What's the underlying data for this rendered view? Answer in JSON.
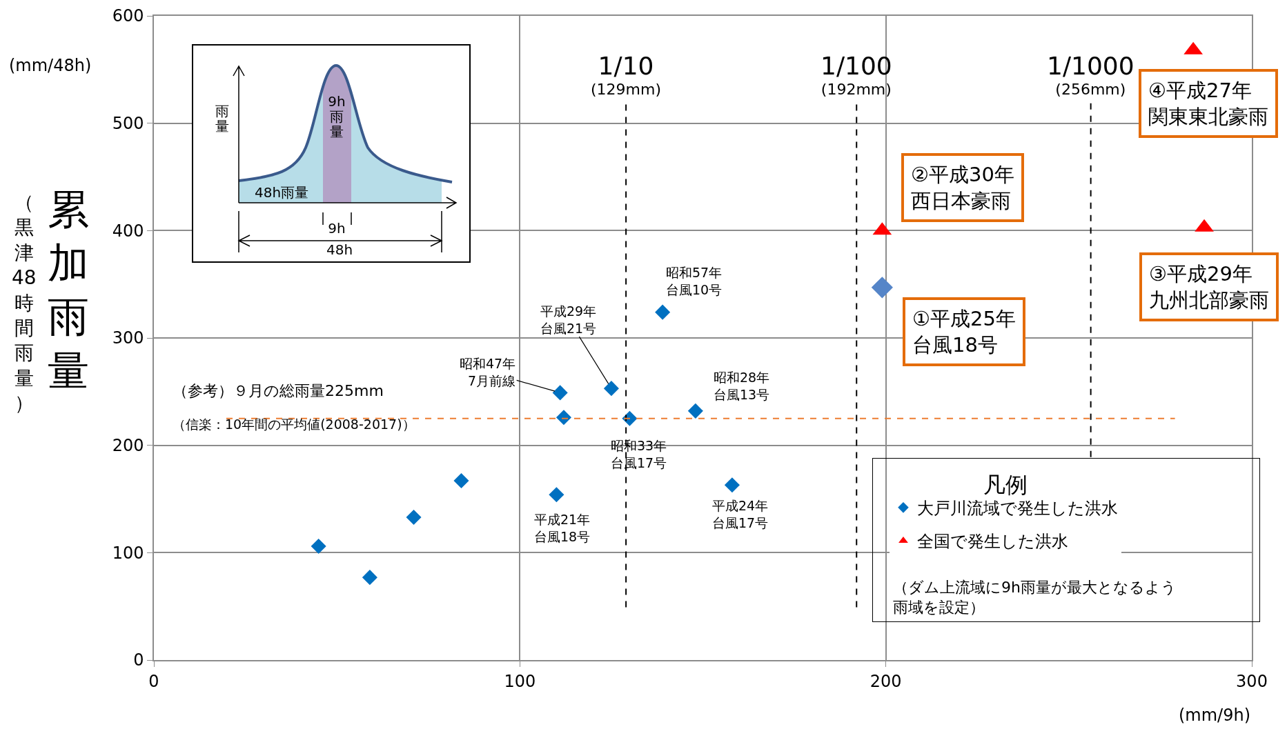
{
  "chart_data": {
    "type": "scatter",
    "ylabel": "累加雨量",
    "legend_title": "凡例",
    "xlim": [
      0,
      300
    ],
    "ylim": [
      0,
      600
    ],
    "xticks": [
      0,
      100,
      200,
      300
    ],
    "yticks": [
      0,
      100,
      200,
      300,
      400,
      500,
      600
    ],
    "grid": true,
    "legend": "bottom right",
    "marker": "diamond",
    "series": [
      {
        "name": "大戸川流域で発生した洪水",
        "color": "#0070c0",
        "x": [
          45,
          59,
          71,
          84,
          110,
          111,
          112,
          125,
          130,
          139,
          148,
          158
        ],
        "values": [
          106,
          77,
          133,
          167,
          154,
          249,
          226,
          253,
          225,
          324,
          232,
          163
        ]
      },
      {
        "name": "全国で発生した洪水",
        "color": "#ff0000",
        "marker": "triangle",
        "x": [
          199,
          284,
          287
        ],
        "values": [
          400,
          568,
          403
        ]
      },
      {
        "color": "#5585c8",
        "x": [
          199
        ],
        "values": [
          347
        ]
      }
    ],
    "ref_lines": [
      {
        "axis": "x",
        "value": 129,
        "label": "1/10\n(129mm)",
        "color": "#000000",
        "line_style": "dashed"
      },
      {
        "axis": "x",
        "value": 192,
        "label": "1/100\n(192mm)",
        "color": "#000000",
        "line_style": "dashed"
      },
      {
        "axis": "x",
        "value": 256,
        "label": "1/1000\n(256mm)",
        "color": "#000000",
        "line_style": "dashed"
      },
      {
        "axis": "y",
        "value": 225,
        "label": "（参考）９月の総雨量225mm",
        "color": "#ed7d31",
        "line_style": "dashed"
      }
    ],
    "annotations": [
      "雨量",
      "9h雨量",
      "48h雨量",
      "9h",
      "48h",
      "(mm/48h)",
      "(mm/9h)",
      "（ダム上流域に9h雨量が最大となるよう雨域を設定）",
      "（黒津48時間雨量）",
      "（信楽：10年間の平均値(2008-2017)）",
      {
        "text": "昭和57年台風10号",
        "x": 139,
        "y": 324
      },
      {
        "text": "平成29年台風21号",
        "x": 125,
        "y": 253
      },
      {
        "text": "昭和47年7月前線",
        "x": 111,
        "y": 249
      },
      {
        "text": "昭和28年台風13号",
        "x": 148,
        "y": 232
      },
      {
        "text": "昭和33年台風17号",
        "x": 130,
        "y": 225
      },
      {
        "text": "平成21年台風18号",
        "x": 110,
        "y": 154
      },
      {
        "text": "平成24年台風17号",
        "x": 158,
        "y": 163
      },
      {
        "text": "①平成25年台風18号",
        "x": 199,
        "y": 347
      },
      {
        "text": "②平成30年西日本豪雨",
        "x": 199,
        "y": 400
      },
      {
        "text": "③平成29年九州北部豪雨",
        "x": 287,
        "y": 403
      },
      {
        "text": "④平成27年関東東北豪雨",
        "x": 284,
        "y": 568
      }
    ]
  }
}
